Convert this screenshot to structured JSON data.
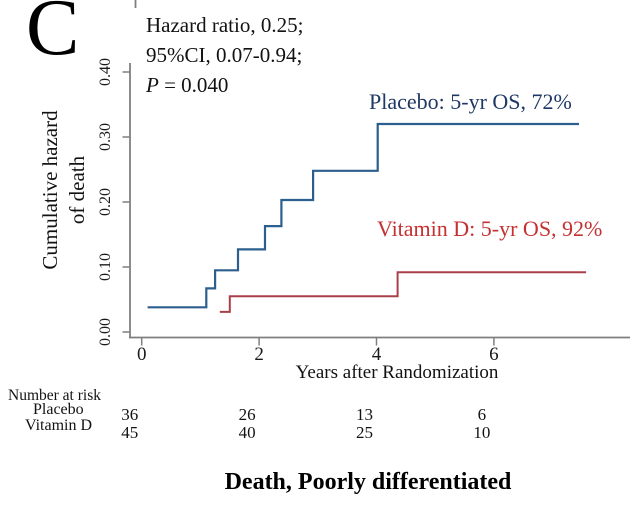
{
  "panel_label": "C",
  "annotation": {
    "line1": "Hazard ratio, 0.25;",
    "line2": "95%CI, 0.07-0.94;",
    "p_label": "P",
    "p_rest": " = 0.040"
  },
  "y_axis": {
    "label_line1": "Cumulative hazard",
    "label_line2": "of death",
    "ticks": [
      {
        "label": "0.00",
        "value": 0.0
      },
      {
        "label": "0.10",
        "value": 0.1
      },
      {
        "label": "0.20",
        "value": 0.2
      },
      {
        "label": "0.30",
        "value": 0.3
      },
      {
        "label": "0.40",
        "value": 0.4
      }
    ]
  },
  "x_axis": {
    "label": "Years after Randomization",
    "ticks": [
      {
        "label": "0",
        "value": 0
      },
      {
        "label": "2",
        "value": 2
      },
      {
        "label": "4",
        "value": 4
      },
      {
        "label": "6",
        "value": 6
      }
    ]
  },
  "series_labels": {
    "placebo": "Placebo: 5-yr OS, 72%",
    "vitamin_d": "Vitamin D: 5-yr OS, 92%"
  },
  "colors": {
    "placebo_line": "#2c5f8e",
    "placebo_text": "#1f3864",
    "vitamin_d_line": "#a84049",
    "vitamin_d_text": "#c53030",
    "axis": "#7f7f7f"
  },
  "number_at_risk": {
    "title": "Number at risk",
    "rows": [
      {
        "label": "Placebo",
        "values": [
          "36",
          "26",
          "13",
          "6"
        ]
      },
      {
        "label": "Vitamin D",
        "values": [
          "45",
          "40",
          "25",
          "10"
        ]
      }
    ]
  },
  "footer_title": "Death, Poorly differentiated",
  "chart_data": {
    "type": "line",
    "subtype": "step-cumulative-hazard",
    "title": "Death, Poorly differentiated",
    "xlabel": "Years after Randomization",
    "ylabel": "Cumulative hazard of death",
    "xlim": [
      -0.2,
      8.3
    ],
    "ylim": [
      0,
      0.42
    ],
    "x_ticks": [
      0,
      2,
      4,
      6
    ],
    "y_ticks": [
      0.0,
      0.1,
      0.2,
      0.3,
      0.4
    ],
    "grid": false,
    "legend_position": "inline-annotations",
    "annotation": "Hazard ratio, 0.25; 95%CI, 0.07-0.94; P = 0.040",
    "series": [
      {
        "name": "Placebo",
        "label": "Placebo: 5-yr OS, 72%",
        "color": "#2c5f8e",
        "step": true,
        "x": [
          0.1,
          1.1,
          1.25,
          1.64,
          2.1,
          2.38,
          2.92,
          4.02,
          7.45
        ],
        "y": [
          0.038,
          0.067,
          0.095,
          0.127,
          0.163,
          0.203,
          0.248,
          0.32,
          0.32
        ]
      },
      {
        "name": "Vitamin D",
        "label": "Vitamin D: 5-yr OS, 92%",
        "color": "#a84049",
        "step": true,
        "x": [
          1.33,
          1.5,
          4.36,
          7.57
        ],
        "y": [
          0.031,
          0.055,
          0.092,
          0.092
        ]
      }
    ],
    "number_at_risk": {
      "times": [
        0,
        2,
        4,
        6
      ],
      "Placebo": [
        36,
        26,
        13,
        6
      ],
      "Vitamin D": [
        45,
        40,
        25,
        10
      ]
    }
  }
}
